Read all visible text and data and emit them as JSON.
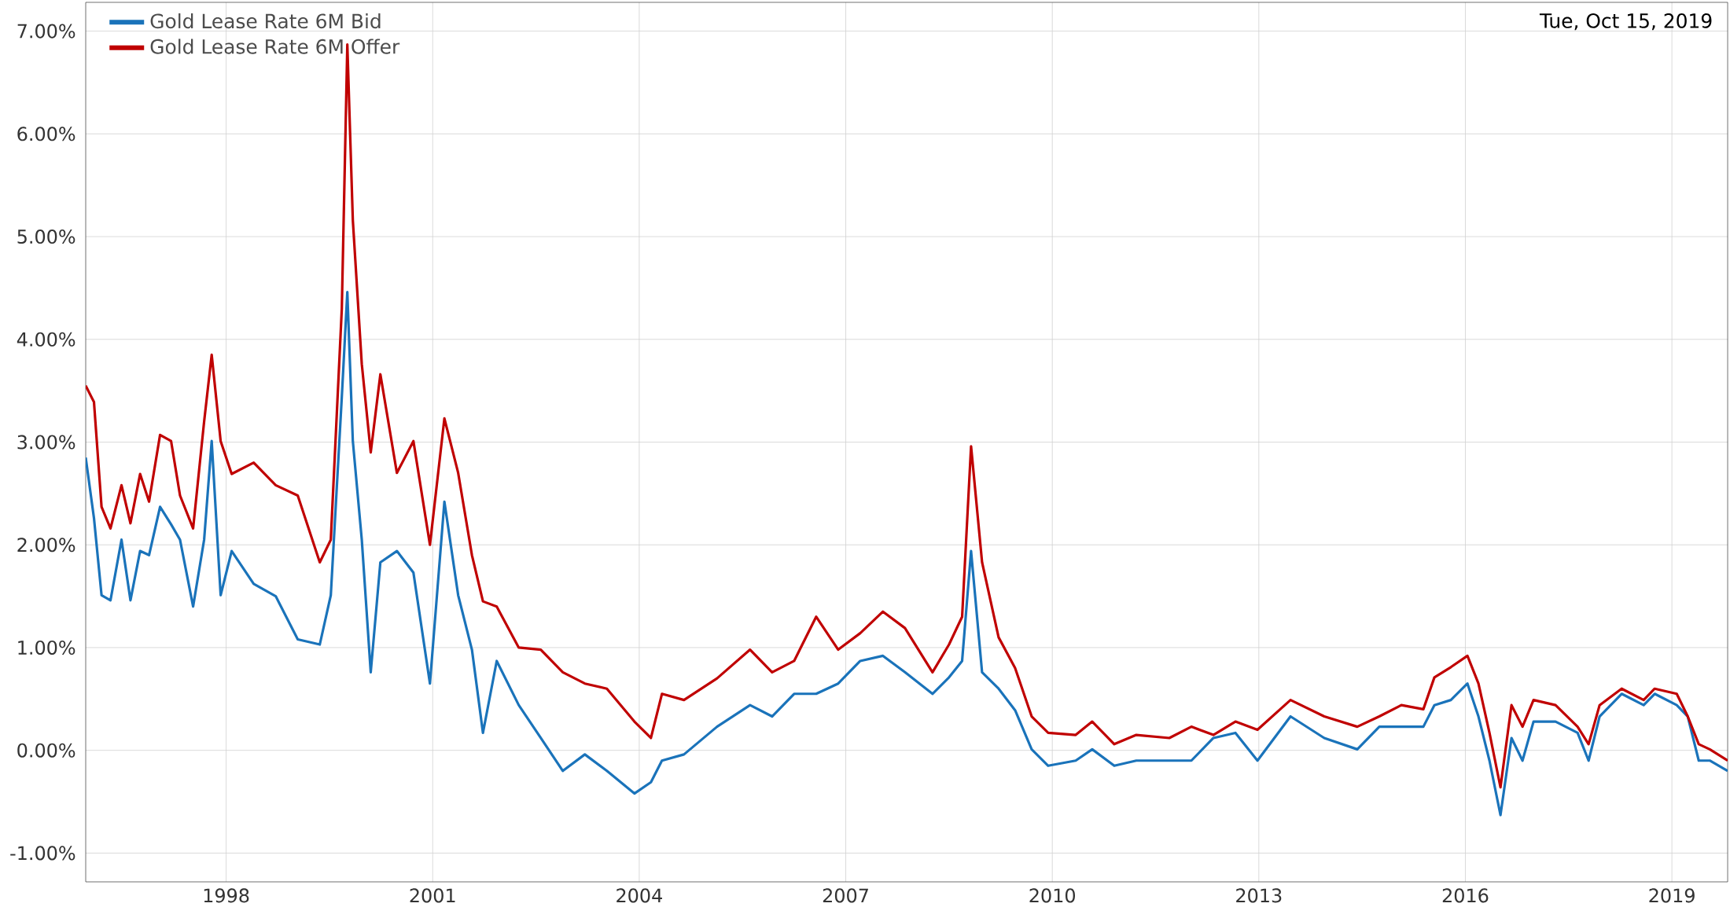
{
  "chart_data": {
    "type": "line",
    "x": [
      1995.96,
      1996.08,
      1996.19,
      1996.32,
      1996.48,
      1996.61,
      1996.75,
      1996.88,
      1997.04,
      1997.2,
      1997.33,
      1997.52,
      1997.68,
      1997.79,
      1997.92,
      1998.08,
      1998.4,
      1998.72,
      1999.04,
      1999.36,
      1999.52,
      1999.68,
      1999.76,
      1999.84,
      1999.97,
      2000.1,
      2000.24,
      2000.48,
      2000.72,
      2000.96,
      2001.17,
      2001.37,
      2001.57,
      2001.73,
      2001.93,
      2002.25,
      2002.57,
      2002.89,
      2003.21,
      2003.53,
      2003.93,
      2004.17,
      2004.33,
      2004.65,
      2005.13,
      2005.61,
      2005.93,
      2006.25,
      2006.57,
      2006.89,
      2007.21,
      2007.54,
      2007.86,
      2008.26,
      2008.5,
      2008.69,
      2008.82,
      2008.98,
      2009.22,
      2009.46,
      2009.7,
      2009.94,
      2010.34,
      2010.58,
      2010.9,
      2011.22,
      2011.7,
      2012.02,
      2012.34,
      2012.66,
      2012.98,
      2013.46,
      2013.95,
      2014.43,
      2014.75,
      2015.07,
      2015.39,
      2015.55,
      2015.79,
      2016.03,
      2016.19,
      2016.35,
      2016.51,
      2016.67,
      2016.83,
      2016.99,
      2017.31,
      2017.63,
      2017.79,
      2017.95,
      2018.27,
      2018.59,
      2018.75,
      2019.07,
      2019.23,
      2019.39,
      2019.55,
      2019.81
    ],
    "series": [
      {
        "name": "Gold Lease Rate 6M Bid",
        "color": "#1a73ba",
        "values": [
          2.85,
          2.26,
          1.51,
          1.46,
          2.05,
          1.46,
          1.94,
          1.9,
          2.37,
          2.2,
          2.05,
          1.4,
          2.05,
          3.01,
          1.51,
          1.94,
          1.62,
          1.5,
          1.08,
          1.03,
          1.51,
          3.44,
          4.46,
          3.01,
          2.05,
          0.76,
          1.83,
          1.94,
          1.73,
          0.65,
          2.42,
          1.51,
          0.98,
          0.17,
          0.87,
          0.44,
          0.12,
          -0.2,
          -0.04,
          -0.2,
          -0.42,
          -0.31,
          -0.1,
          -0.04,
          0.23,
          0.44,
          0.33,
          0.55,
          0.55,
          0.65,
          0.87,
          0.92,
          0.76,
          0.55,
          0.71,
          0.87,
          1.94,
          0.76,
          0.6,
          0.39,
          0.01,
          -0.15,
          -0.1,
          0.01,
          -0.15,
          -0.1,
          -0.1,
          -0.1,
          0.12,
          0.17,
          -0.1,
          0.33,
          0.12,
          0.01,
          0.23,
          0.23,
          0.23,
          0.44,
          0.49,
          0.65,
          0.33,
          -0.1,
          -0.63,
          0.12,
          -0.1,
          0.28,
          0.28,
          0.17,
          -0.1,
          0.33,
          0.55,
          0.44,
          0.55,
          0.44,
          0.33,
          -0.1,
          -0.1,
          -0.2
        ]
      },
      {
        "name": "Gold Lease Rate 6M Offer",
        "color": "#c00000",
        "values": [
          3.55,
          3.39,
          2.37,
          2.16,
          2.58,
          2.21,
          2.69,
          2.42,
          3.07,
          3.01,
          2.48,
          2.16,
          3.2,
          3.85,
          3.01,
          2.69,
          2.8,
          2.58,
          2.48,
          1.83,
          2.05,
          4.3,
          6.87,
          5.16,
          3.76,
          2.9,
          3.66,
          2.7,
          3.01,
          2.0,
          3.23,
          2.7,
          1.9,
          1.45,
          1.4,
          1.0,
          0.98,
          0.76,
          0.65,
          0.6,
          0.28,
          0.12,
          0.55,
          0.49,
          0.7,
          0.98,
          0.76,
          0.87,
          1.3,
          0.98,
          1.14,
          1.35,
          1.19,
          0.76,
          1.03,
          1.3,
          2.96,
          1.83,
          1.1,
          0.8,
          0.33,
          0.17,
          0.15,
          0.28,
          0.06,
          0.15,
          0.12,
          0.23,
          0.15,
          0.28,
          0.2,
          0.49,
          0.33,
          0.23,
          0.33,
          0.44,
          0.4,
          0.71,
          0.81,
          0.92,
          0.65,
          0.17,
          -0.36,
          0.44,
          0.23,
          0.49,
          0.44,
          0.23,
          0.06,
          0.44,
          0.6,
          0.49,
          0.6,
          0.55,
          0.33,
          0.06,
          0.01,
          -0.1
        ]
      }
    ],
    "xlim": [
      1995.96,
      2019.81
    ],
    "xticks": [
      1998,
      2001,
      2004,
      2007,
      2010,
      2013,
      2016,
      2019
    ],
    "ylim": [
      -1.28,
      7.28
    ],
    "yticks": [
      {
        "value": -1,
        "label": "-1.00%"
      },
      {
        "value": 0,
        "label": "0.00%"
      },
      {
        "value": 1,
        "label": "1.00%"
      },
      {
        "value": 2,
        "label": "2.00%"
      },
      {
        "value": 3,
        "label": "3.00%"
      },
      {
        "value": 4,
        "label": "4.00%"
      },
      {
        "value": 5,
        "label": "5.00%"
      },
      {
        "value": 6,
        "label": "6.00%"
      },
      {
        "value": 7,
        "label": "7.00%"
      }
    ],
    "grid": true,
    "legend": "top left",
    "annotations": [
      "Tue, Oct 15, 2019"
    ]
  }
}
